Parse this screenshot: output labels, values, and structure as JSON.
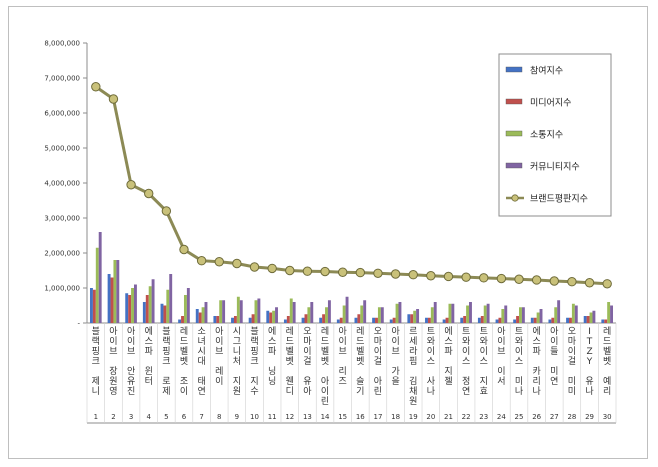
{
  "chart_data": {
    "type": "bar",
    "title": "",
    "xlabel": "",
    "ylabel": "",
    "ylim": [
      0,
      8000000
    ],
    "y_ticks": [
      "-",
      "1,000,000",
      "2,000,000",
      "3,000,000",
      "4,000,000",
      "5,000,000",
      "6,000,000",
      "7,000,000",
      "8,000,000"
    ],
    "grid": false,
    "legend_position": "right",
    "ranks": [
      "1",
      "2",
      "3",
      "4",
      "5",
      "6",
      "7",
      "8",
      "9",
      "10",
      "11",
      "12",
      "13",
      "14",
      "15",
      "16",
      "17",
      "18",
      "19",
      "20",
      "21",
      "22",
      "23",
      "24",
      "25",
      "26",
      "27",
      "28",
      "29",
      "30"
    ],
    "categories": [
      "블랙핑크 제니",
      "아이브 장원영",
      "아이브 안유진",
      "에스파 윈터",
      "블랙핑크 로제",
      "레드벨벳 조이",
      "소녀시대 태연",
      "아이브 레이",
      "시그니처 지원",
      "블랙핑크 지수",
      "에스파 닝닝",
      "레드벨벳 웬디",
      "오마이걸 유아",
      "레드벨벳 아이린",
      "아이브 리즈",
      "레드벨벳 슬기",
      "오마이걸 아린",
      "아이브 가을",
      "르세라핌 김채원",
      "트와이스 사나",
      "에스파 지젤",
      "트와이스 정연",
      "트와이스 지효",
      "아이브 이서",
      "트와이스 미나",
      "에스파 카리나",
      "아이들 미연",
      "오마이걸 미미",
      "ITZY 유나",
      "레드벨벳 예리"
    ],
    "series": [
      {
        "name": "참여지수",
        "type": "bar",
        "color": "#4472c4",
        "values": [
          1000000,
          1400000,
          850000,
          600000,
          550000,
          100000,
          400000,
          200000,
          150000,
          150000,
          350000,
          100000,
          150000,
          150000,
          100000,
          150000,
          150000,
          100000,
          250000,
          150000,
          100000,
          150000,
          150000,
          100000,
          100000,
          150000,
          100000,
          150000,
          200000,
          100000
        ]
      },
      {
        "name": "미디어지수",
        "type": "bar",
        "color": "#c0504d",
        "values": [
          950000,
          1300000,
          800000,
          800000,
          500000,
          200000,
          300000,
          200000,
          200000,
          250000,
          300000,
          200000,
          250000,
          250000,
          150000,
          250000,
          150000,
          150000,
          250000,
          150000,
          150000,
          200000,
          200000,
          150000,
          200000,
          150000,
          150000,
          150000,
          200000,
          100000
        ]
      },
      {
        "name": "소통지수",
        "type": "bar",
        "color": "#9bbb59",
        "values": [
          2150000,
          1800000,
          1000000,
          1050000,
          950000,
          800000,
          450000,
          650000,
          750000,
          650000,
          350000,
          700000,
          450000,
          450000,
          500000,
          500000,
          450000,
          550000,
          350000,
          450000,
          550000,
          500000,
          500000,
          400000,
          450000,
          300000,
          450000,
          550000,
          300000,
          600000
        ]
      },
      {
        "name": "커뮤니티지수",
        "type": "bar",
        "color": "#8064a2",
        "values": [
          2600000,
          1800000,
          1100000,
          1250000,
          1400000,
          1000000,
          600000,
          650000,
          650000,
          700000,
          450000,
          600000,
          600000,
          650000,
          750000,
          650000,
          450000,
          600000,
          400000,
          600000,
          550000,
          600000,
          550000,
          500000,
          450000,
          400000,
          650000,
          500000,
          350000,
          500000
        ]
      },
      {
        "name": "브랜드평판지수",
        "type": "line",
        "color": "#8c8a55",
        "values": [
          6750000,
          6400000,
          3950000,
          3700000,
          3200000,
          2100000,
          1780000,
          1750000,
          1700000,
          1600000,
          1560000,
          1500000,
          1480000,
          1470000,
          1450000,
          1440000,
          1420000,
          1400000,
          1380000,
          1350000,
          1330000,
          1310000,
          1290000,
          1270000,
          1250000,
          1230000,
          1200000,
          1180000,
          1150000,
          1120000
        ]
      }
    ]
  }
}
